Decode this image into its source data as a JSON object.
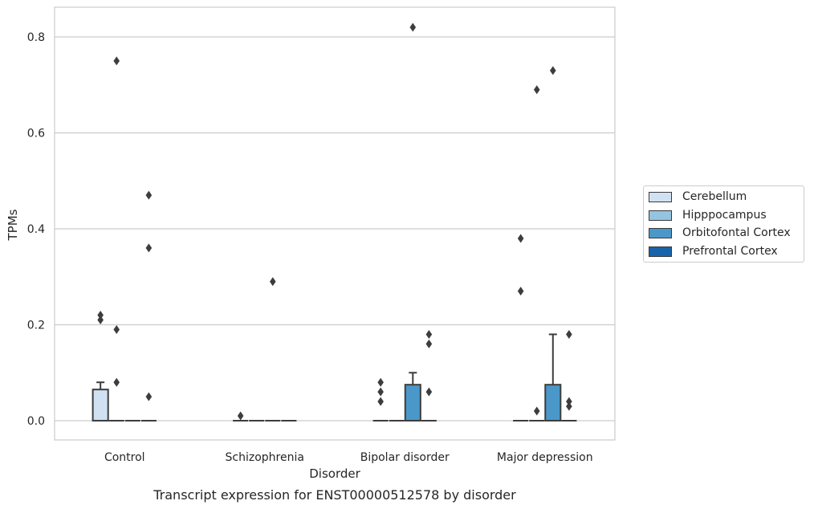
{
  "chart_data": {
    "type": "box",
    "title": "",
    "caption": "Transcript expression for ENST00000512578 by disorder",
    "xlabel": "Disorder",
    "ylabel": "TPMs",
    "ylim": [
      -0.04,
      0.862
    ],
    "yticks": [
      0.0,
      0.2,
      0.4,
      0.6,
      0.8
    ],
    "ytick_labels": [
      "0.0",
      "0.2",
      "0.4",
      "0.6",
      "0.8"
    ],
    "grid": "horizontal",
    "legend_position": "right",
    "categories": [
      "Control",
      "Schizophrenia",
      "Bipolar disorder",
      "Major depression"
    ],
    "series": [
      {
        "name": "Cerebellum",
        "color": "#d0e1f2",
        "boxes": [
          {
            "category": "Control",
            "q1": 0.0,
            "median": 0.0,
            "q3": 0.065,
            "whisker_low": 0.0,
            "whisker_high": 0.08,
            "outliers": [
              0.22,
              0.21
            ]
          },
          {
            "category": "Schizophrenia",
            "q1": 0.0,
            "median": 0.0,
            "q3": 0.0,
            "whisker_low": 0.0,
            "whisker_high": 0.0,
            "outliers": [
              0.01
            ]
          },
          {
            "category": "Bipolar disorder",
            "q1": 0.0,
            "median": 0.0,
            "q3": 0.0,
            "whisker_low": 0.0,
            "whisker_high": 0.0,
            "outliers": [
              0.08,
              0.06,
              0.04
            ]
          },
          {
            "category": "Major depression",
            "q1": 0.0,
            "median": 0.0,
            "q3": 0.0,
            "whisker_low": 0.0,
            "whisker_high": 0.0,
            "outliers": [
              0.38,
              0.27
            ]
          }
        ]
      },
      {
        "name": "Hipppocampus",
        "color": "#94c4df",
        "boxes": [
          {
            "category": "Control",
            "q1": 0.0,
            "median": 0.0,
            "q3": 0.0,
            "whisker_low": 0.0,
            "whisker_high": 0.0,
            "outliers": [
              0.75,
              0.19,
              0.08
            ]
          },
          {
            "category": "Schizophrenia",
            "q1": 0.0,
            "median": 0.0,
            "q3": 0.0,
            "whisker_low": 0.0,
            "whisker_high": 0.0,
            "outliers": []
          },
          {
            "category": "Bipolar disorder",
            "q1": 0.0,
            "median": 0.0,
            "q3": 0.0,
            "whisker_low": 0.0,
            "whisker_high": 0.0,
            "outliers": []
          },
          {
            "category": "Major depression",
            "q1": 0.0,
            "median": 0.0,
            "q3": 0.0,
            "whisker_low": 0.0,
            "whisker_high": 0.0,
            "outliers": [
              0.69,
              0.02
            ]
          }
        ]
      },
      {
        "name": "Orbitofontal Cortex",
        "color": "#4a98c9",
        "boxes": [
          {
            "category": "Control",
            "q1": 0.0,
            "median": 0.0,
            "q3": 0.0,
            "whisker_low": 0.0,
            "whisker_high": 0.0,
            "outliers": []
          },
          {
            "category": "Schizophrenia",
            "q1": 0.0,
            "median": 0.0,
            "q3": 0.0,
            "whisker_low": 0.0,
            "whisker_high": 0.0,
            "outliers": [
              0.29
            ]
          },
          {
            "category": "Bipolar disorder",
            "q1": 0.0,
            "median": 0.0,
            "q3": 0.075,
            "whisker_low": 0.0,
            "whisker_high": 0.1,
            "outliers": [
              0.82
            ]
          },
          {
            "category": "Major depression",
            "q1": 0.0,
            "median": 0.0,
            "q3": 0.075,
            "whisker_low": 0.0,
            "whisker_high": 0.18,
            "outliers": [
              0.73
            ]
          }
        ]
      },
      {
        "name": "Prefrontal Cortex",
        "color": "#1764ab",
        "boxes": [
          {
            "category": "Control",
            "q1": 0.0,
            "median": 0.0,
            "q3": 0.0,
            "whisker_low": 0.0,
            "whisker_high": 0.0,
            "outliers": [
              0.47,
              0.36,
              0.05
            ]
          },
          {
            "category": "Schizophrenia",
            "q1": 0.0,
            "median": 0.0,
            "q3": 0.0,
            "whisker_low": 0.0,
            "whisker_high": 0.0,
            "outliers": []
          },
          {
            "category": "Bipolar disorder",
            "q1": 0.0,
            "median": 0.0,
            "q3": 0.0,
            "whisker_low": 0.0,
            "whisker_high": 0.0,
            "outliers": [
              0.18,
              0.16,
              0.06
            ]
          },
          {
            "category": "Major depression",
            "q1": 0.0,
            "median": 0.0,
            "q3": 0.0,
            "whisker_low": 0.0,
            "whisker_high": 0.0,
            "outliers": [
              0.18,
              0.04,
              0.03
            ]
          }
        ]
      }
    ]
  }
}
